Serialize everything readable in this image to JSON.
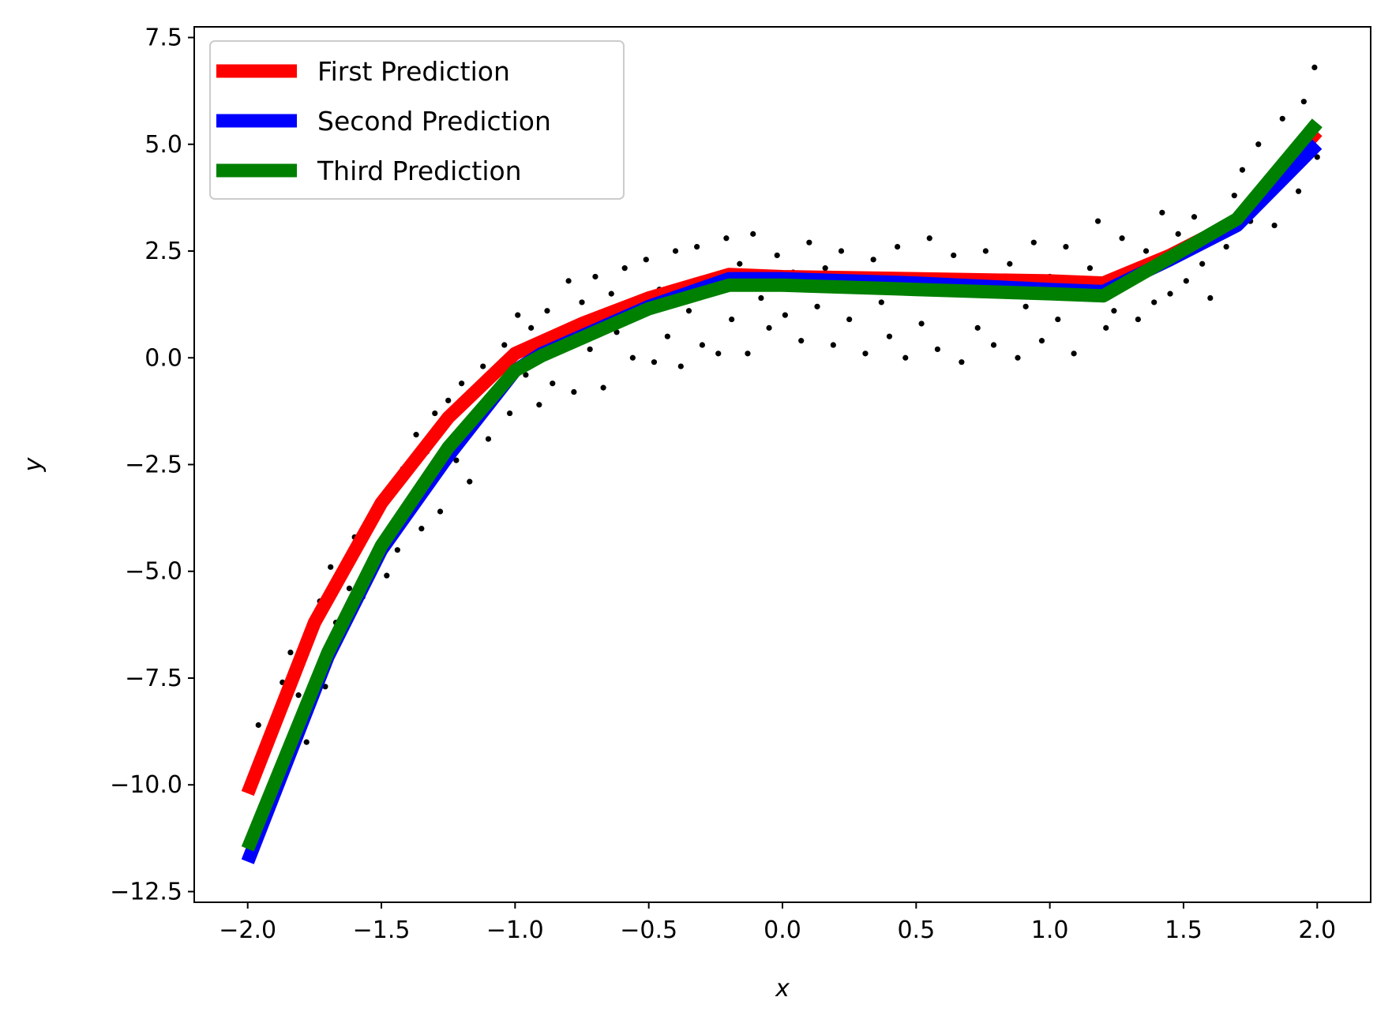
{
  "chart_data": {
    "type": "line",
    "xlabel": "x",
    "ylabel": "y",
    "xlim": [
      -2.2,
      2.2
    ],
    "ylim": [
      -12.75,
      7.75
    ],
    "x_ticks": [
      -2.0,
      -1.5,
      -1.0,
      -0.5,
      0.0,
      0.5,
      1.0,
      1.5,
      2.0
    ],
    "x_tick_labels": [
      "−2.0",
      "−1.5",
      "−1.0",
      "−0.5",
      "0.0",
      "0.5",
      "1.0",
      "1.5",
      "2.0"
    ],
    "y_ticks": [
      -12.5,
      -10.0,
      -7.5,
      -5.0,
      -2.5,
      0.0,
      2.5,
      5.0,
      7.5
    ],
    "y_tick_labels": [
      "−12.5",
      "−10.0",
      "−7.5",
      "−5.0",
      "−2.5",
      "0.0",
      "2.5",
      "5.0",
      "7.5"
    ],
    "grid": false,
    "legend_position": "top-left",
    "series": [
      {
        "name": "First Prediction",
        "color": "#ff0000",
        "x": [
          -2.0,
          -1.75,
          -1.5,
          -1.25,
          -1.0,
          -0.75,
          -0.5,
          -0.2,
          0.0,
          0.5,
          1.0,
          1.2,
          1.45,
          1.7,
          2.0
        ],
        "y": [
          -10.2,
          -6.2,
          -3.4,
          -1.4,
          0.1,
          0.8,
          1.4,
          1.95,
          1.9,
          1.85,
          1.8,
          1.75,
          2.4,
          3.2,
          5.3
        ]
      },
      {
        "name": "Second Prediction",
        "color": "#0000ff",
        "x": [
          -2.0,
          -1.7,
          -1.5,
          -1.25,
          -1.0,
          -0.9,
          -0.5,
          -0.2,
          0.0,
          0.5,
          1.0,
          1.2,
          1.45,
          1.7,
          2.0
        ],
        "y": [
          -11.8,
          -7.0,
          -4.5,
          -2.3,
          -0.3,
          0.1,
          1.2,
          1.85,
          1.85,
          1.75,
          1.6,
          1.55,
          2.3,
          3.1,
          5.0
        ]
      },
      {
        "name": "Third Prediction",
        "color": "#008000",
        "x": [
          -2.0,
          -1.7,
          -1.5,
          -1.25,
          -1.0,
          -0.9,
          -0.5,
          -0.2,
          0.0,
          0.5,
          1.0,
          1.2,
          1.45,
          1.7,
          2.0
        ],
        "y": [
          -11.5,
          -6.9,
          -4.4,
          -2.1,
          -0.3,
          0.05,
          1.15,
          1.7,
          1.7,
          1.6,
          1.5,
          1.45,
          2.35,
          3.25,
          5.5
        ]
      }
    ],
    "scatter": {
      "color": "#000000",
      "points": [
        [
          -1.96,
          -8.6
        ],
        [
          -1.93,
          -9.3
        ],
        [
          -1.9,
          -8.8
        ],
        [
          -1.87,
          -7.6
        ],
        [
          -1.84,
          -6.9
        ],
        [
          -1.81,
          -7.9
        ],
        [
          -1.78,
          -9.0
        ],
        [
          -1.75,
          -6.4
        ],
        [
          -1.73,
          -5.7
        ],
        [
          -1.71,
          -7.7
        ],
        [
          -1.69,
          -4.9
        ],
        [
          -1.67,
          -6.2
        ],
        [
          -1.64,
          -5.0
        ],
        [
          -1.62,
          -5.4
        ],
        [
          -1.6,
          -4.2
        ],
        [
          -1.57,
          -5.6
        ],
        [
          -1.55,
          -3.8
        ],
        [
          -1.53,
          -4.7
        ],
        [
          -1.5,
          -3.5
        ],
        [
          -1.48,
          -5.1
        ],
        [
          -1.46,
          -3.0
        ],
        [
          -1.44,
          -4.5
        ],
        [
          -1.42,
          -2.6
        ],
        [
          -1.39,
          -3.3
        ],
        [
          -1.37,
          -1.8
        ],
        [
          -1.35,
          -4.0
        ],
        [
          -1.33,
          -2.2
        ],
        [
          -1.3,
          -1.3
        ],
        [
          -1.28,
          -3.6
        ],
        [
          -1.25,
          -1.0
        ],
        [
          -1.22,
          -2.4
        ],
        [
          -1.2,
          -0.6
        ],
        [
          -1.17,
          -2.9
        ],
        [
          -1.15,
          -1.6
        ],
        [
          -1.12,
          -0.2
        ],
        [
          -1.1,
          -1.9
        ],
        [
          -1.07,
          -0.9
        ],
        [
          -1.04,
          0.3
        ],
        [
          -1.02,
          -1.3
        ],
        [
          -0.99,
          1.0
        ],
        [
          -0.96,
          -0.4
        ],
        [
          -0.94,
          0.7
        ],
        [
          -0.91,
          -1.1
        ],
        [
          -0.88,
          1.1
        ],
        [
          -0.86,
          -0.6
        ],
        [
          -0.83,
          0.4
        ],
        [
          -0.8,
          1.8
        ],
        [
          -0.78,
          -0.8
        ],
        [
          -0.75,
          1.3
        ],
        [
          -0.72,
          0.2
        ],
        [
          -0.7,
          1.9
        ],
        [
          -0.67,
          -0.7
        ],
        [
          -0.64,
          1.5
        ],
        [
          -0.62,
          0.6
        ],
        [
          -0.59,
          2.1
        ],
        [
          -0.56,
          0.0
        ],
        [
          -0.54,
          1.2
        ],
        [
          -0.51,
          2.3
        ],
        [
          -0.48,
          -0.1
        ],
        [
          -0.46,
          1.6
        ],
        [
          -0.43,
          0.5
        ],
        [
          -0.4,
          2.5
        ],
        [
          -0.38,
          -0.2
        ],
        [
          -0.35,
          1.1
        ],
        [
          -0.32,
          2.6
        ],
        [
          -0.3,
          0.3
        ],
        [
          -0.27,
          1.9
        ],
        [
          -0.24,
          0.1
        ],
        [
          -0.21,
          2.8
        ],
        [
          -0.19,
          0.9
        ],
        [
          -0.16,
          2.2
        ],
        [
          -0.13,
          0.1
        ],
        [
          -0.11,
          2.9
        ],
        [
          -0.08,
          1.4
        ],
        [
          -0.05,
          0.7
        ],
        [
          -0.02,
          2.4
        ],
        [
          0.01,
          1.0
        ],
        [
          0.04,
          2.0
        ],
        [
          0.07,
          0.4
        ],
        [
          0.1,
          2.7
        ],
        [
          0.13,
          1.2
        ],
        [
          0.16,
          2.1
        ],
        [
          0.19,
          0.3
        ],
        [
          0.22,
          2.5
        ],
        [
          0.25,
          0.9
        ],
        [
          0.28,
          1.7
        ],
        [
          0.31,
          0.1
        ],
        [
          0.34,
          2.3
        ],
        [
          0.37,
          1.3
        ],
        [
          0.4,
          0.5
        ],
        [
          0.43,
          2.6
        ],
        [
          0.46,
          0.0
        ],
        [
          0.49,
          1.9
        ],
        [
          0.52,
          0.8
        ],
        [
          0.55,
          2.8
        ],
        [
          0.58,
          0.2
        ],
        [
          0.61,
          1.5
        ],
        [
          0.64,
          2.4
        ],
        [
          0.67,
          -0.1
        ],
        [
          0.7,
          1.8
        ],
        [
          0.73,
          0.7
        ],
        [
          0.76,
          2.5
        ],
        [
          0.79,
          0.3
        ],
        [
          0.82,
          1.6
        ],
        [
          0.85,
          2.2
        ],
        [
          0.88,
          0.0
        ],
        [
          0.91,
          1.2
        ],
        [
          0.94,
          2.7
        ],
        [
          0.97,
          0.4
        ],
        [
          1.0,
          1.9
        ],
        [
          1.03,
          0.9
        ],
        [
          1.06,
          2.6
        ],
        [
          1.09,
          0.1
        ],
        [
          1.12,
          1.4
        ],
        [
          1.15,
          2.1
        ],
        [
          1.18,
          3.2
        ],
        [
          1.21,
          0.7
        ],
        [
          1.24,
          1.1
        ],
        [
          1.27,
          2.8
        ],
        [
          1.3,
          1.8
        ],
        [
          1.33,
          0.9
        ],
        [
          1.36,
          2.5
        ],
        [
          1.39,
          1.3
        ],
        [
          1.42,
          3.4
        ],
        [
          1.45,
          1.5
        ],
        [
          1.48,
          2.9
        ],
        [
          1.51,
          1.8
        ],
        [
          1.54,
          3.3
        ],
        [
          1.57,
          2.2
        ],
        [
          1.6,
          1.4
        ],
        [
          1.63,
          3.0
        ],
        [
          1.66,
          2.6
        ],
        [
          1.69,
          3.8
        ],
        [
          1.72,
          4.4
        ],
        [
          1.75,
          3.2
        ],
        [
          1.78,
          5.0
        ],
        [
          1.81,
          4.2
        ],
        [
          1.84,
          3.1
        ],
        [
          1.87,
          5.6
        ],
        [
          1.9,
          4.6
        ],
        [
          1.93,
          3.9
        ],
        [
          1.95,
          6.0
        ],
        [
          1.97,
          4.9
        ],
        [
          1.99,
          6.8
        ],
        [
          2.0,
          4.7
        ]
      ]
    }
  }
}
